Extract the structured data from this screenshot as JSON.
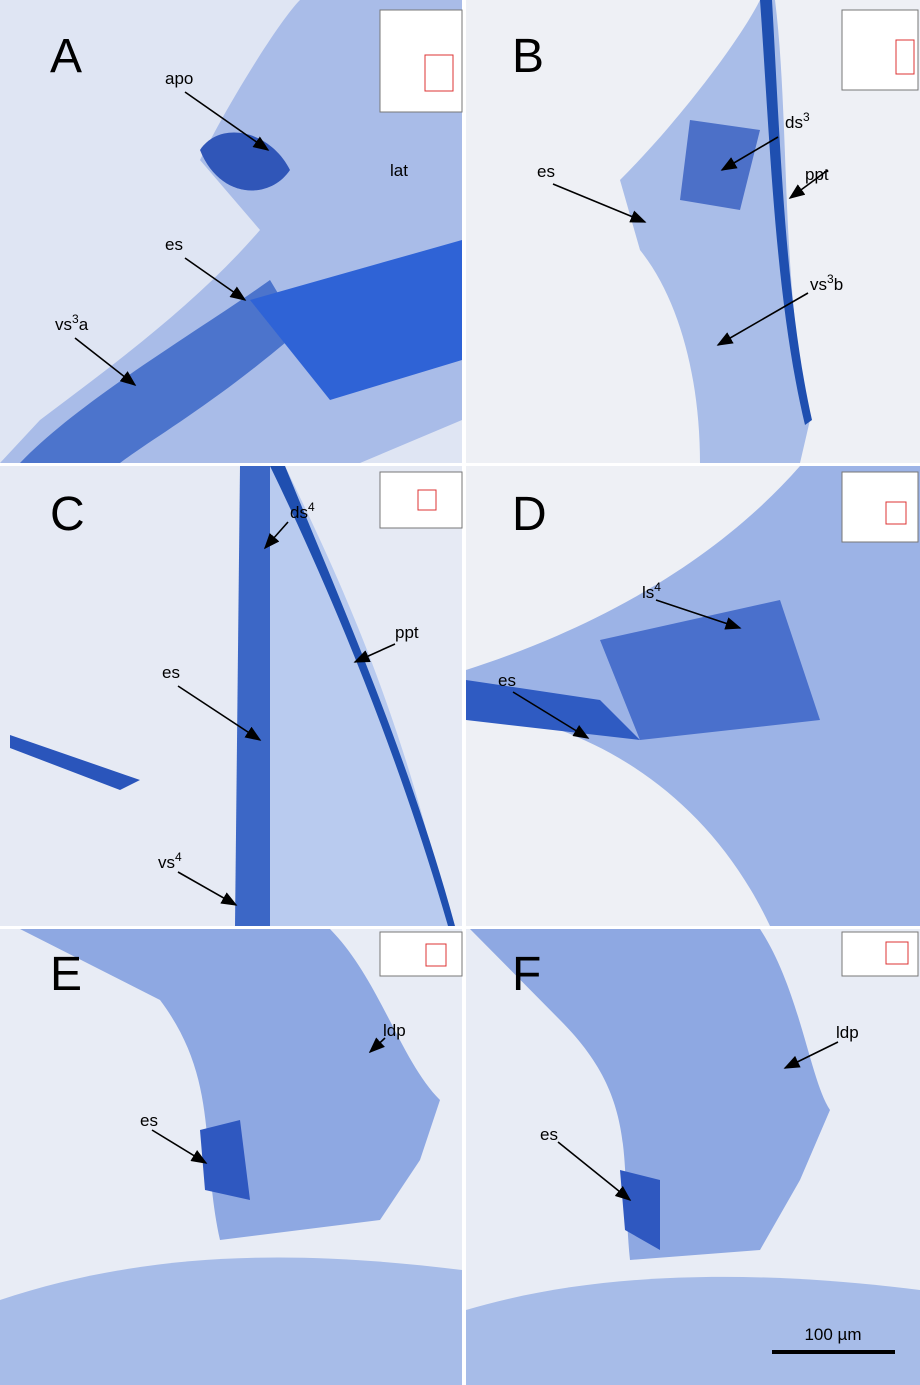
{
  "panels": [
    {
      "letter": "A",
      "annotations": [
        {
          "base": "apo"
        },
        {
          "base": "lat"
        },
        {
          "base": "es"
        },
        {
          "base": "vs",
          "sup": "3",
          "tail": "a"
        }
      ]
    },
    {
      "letter": "B",
      "annotations": [
        {
          "base": "ds",
          "sup": "3"
        },
        {
          "base": "ppt"
        },
        {
          "base": "es"
        },
        {
          "base": "vs",
          "sup": "3",
          "tail": "b"
        }
      ]
    },
    {
      "letter": "C",
      "annotations": [
        {
          "base": "ds",
          "sup": "4"
        },
        {
          "base": "ppt"
        },
        {
          "base": "es"
        },
        {
          "base": "vs",
          "sup": "4"
        }
      ]
    },
    {
      "letter": "D",
      "annotations": [
        {
          "base": "ls",
          "sup": "4"
        },
        {
          "base": "es"
        }
      ]
    },
    {
      "letter": "E",
      "annotations": [
        {
          "base": "ldp"
        },
        {
          "base": "es"
        }
      ]
    },
    {
      "letter": "F",
      "annotations": [
        {
          "base": "ldp"
        },
        {
          "base": "es"
        }
      ]
    }
  ],
  "scale_bar": "100 µm"
}
